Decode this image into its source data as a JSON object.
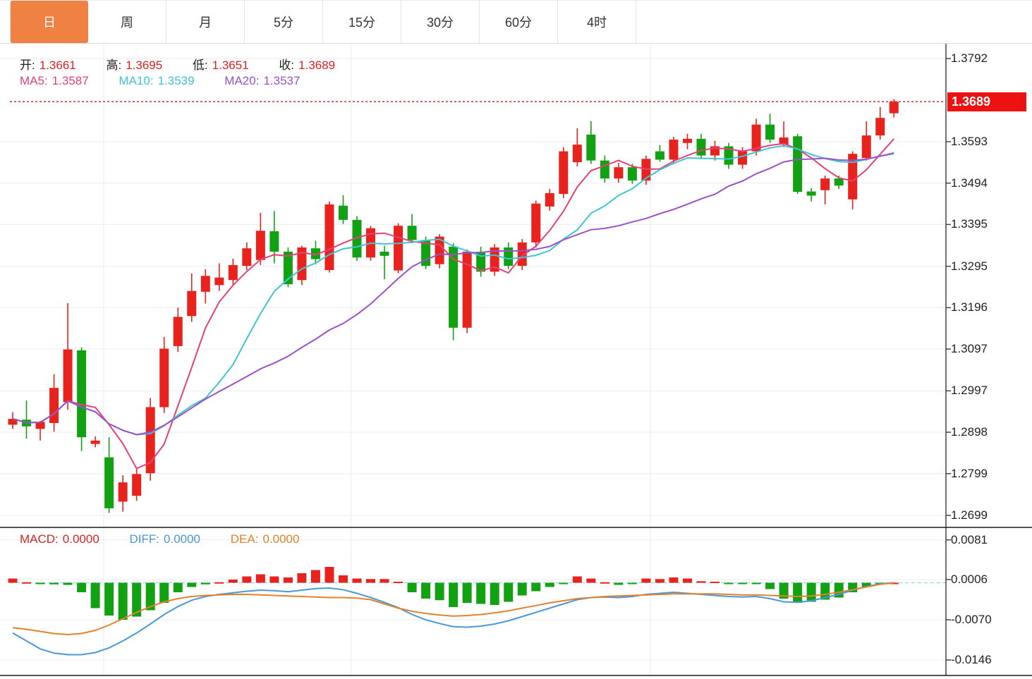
{
  "tab_bar": {
    "items": [
      {
        "name": "day",
        "label": "日",
        "active": true
      },
      {
        "name": "week",
        "label": "周",
        "active": false
      },
      {
        "name": "month",
        "label": "月",
        "active": false
      },
      {
        "name": "5min",
        "label": "5分",
        "active": false
      },
      {
        "name": "15min",
        "label": "15分",
        "active": false
      },
      {
        "name": "30min",
        "label": "30分",
        "active": false
      },
      {
        "name": "60min",
        "label": "60分",
        "active": false
      },
      {
        "name": "4hour",
        "label": "4时",
        "active": false
      }
    ]
  },
  "ohlc_legend": {
    "open_label": "开:",
    "open_value": "1.3661",
    "high_label": "高:",
    "high_value": "1.3695",
    "low_label": "低:",
    "low_value": "1.3651",
    "close_label": "收:",
    "close_value": "1.3689"
  },
  "ma_legend": {
    "ma5_label": "MA5:",
    "ma5_value": "1.3587",
    "ma10_label": "MA10:",
    "ma10_value": "1.3539",
    "ma20_label": "MA20:",
    "ma20_value": "1.3537"
  },
  "macd_legend": {
    "macd_label": "MACD:",
    "macd_value": "0.0000",
    "diff_label": "DIFF:",
    "diff_value": "0.0000",
    "dea_label": "DEA:",
    "dea_value": "0.0000"
  },
  "price_axis": {
    "ticks": [
      "1.3792",
      "1.3593",
      "1.3494",
      "1.3395",
      "1.3295",
      "1.3196",
      "1.3097",
      "1.2997",
      "1.2898",
      "1.2799",
      "1.2699"
    ],
    "current_price_tag": "1.3689"
  },
  "macd_axis": {
    "ticks": [
      "0.0081",
      "0.0006",
      "-0.0070",
      "-0.0146"
    ]
  },
  "colors": {
    "up": "#e8231d",
    "down": "#13a114",
    "ma5": "#e5407a",
    "ma10": "#3fc4d6",
    "ma20": "#9b51c8",
    "diff": "#4a97d9",
    "dea": "#e0832a",
    "tab_active_bg": "#ef8142",
    "current_price_line": "#c03030",
    "tag_bg": "#ee1111",
    "grid": "#ebebf1",
    "divider": "#1a1a1a",
    "axis_line": "#444444",
    "label_black": "#222222",
    "value_red": "#dd2222",
    "zero_dash": "#8fd6e4"
  },
  "chart_data": [
    {
      "type": "candlestick",
      "title": "日K (daily candles, red=up green=down)",
      "y_ticks": [
        1.3792,
        1.3593,
        1.3494,
        1.3395,
        1.3295,
        1.3196,
        1.3097,
        1.2997,
        1.2898,
        1.2799,
        1.2699
      ],
      "y_range": [
        1.2672,
        1.3826
      ],
      "current_price": 1.3689,
      "grid": true,
      "overlays": [
        {
          "name": "MA5",
          "period": 5,
          "last_value": 1.3587
        },
        {
          "name": "MA10",
          "period": 10,
          "last_value": 1.3539
        },
        {
          "name": "MA20",
          "period": 20,
          "last_value": 1.3537
        }
      ],
      "candles_ohlc": [
        [
          1.2916,
          1.2946,
          1.2906,
          1.293
        ],
        [
          1.2928,
          1.2974,
          1.2883,
          1.2912
        ],
        [
          1.2906,
          1.2925,
          1.2878,
          1.2923
        ],
        [
          1.292,
          1.3037,
          1.2899,
          1.3004
        ],
        [
          1.297,
          1.3207,
          1.2952,
          1.3096
        ],
        [
          1.3094,
          1.3101,
          1.2853,
          1.2886
        ],
        [
          1.287,
          1.2888,
          1.2862,
          1.2878
        ],
        [
          1.2838,
          1.2886,
          1.2705,
          1.2716
        ],
        [
          1.2732,
          1.2795,
          1.2708,
          1.2778
        ],
        [
          1.2746,
          1.2812,
          1.2734,
          1.2798
        ],
        [
          1.28,
          1.298,
          1.2782,
          1.2958
        ],
        [
          1.2958,
          1.3126,
          1.2944,
          1.3098
        ],
        [
          1.3104,
          1.3196,
          1.309,
          1.3174
        ],
        [
          1.3176,
          1.3278,
          1.3162,
          1.3236
        ],
        [
          1.3234,
          1.3288,
          1.3206,
          1.3272
        ],
        [
          1.325,
          1.3302,
          1.3236,
          1.3268
        ],
        [
          1.3262,
          1.3313,
          1.325,
          1.3298
        ],
        [
          1.3296,
          1.3352,
          1.3286,
          1.3338
        ],
        [
          1.331,
          1.3423,
          1.3298,
          1.338
        ],
        [
          1.3379,
          1.3427,
          1.3302,
          1.333
        ],
        [
          1.333,
          1.334,
          1.3245,
          1.3252
        ],
        [
          1.3262,
          1.3344,
          1.325,
          1.334
        ],
        [
          1.3338,
          1.3356,
          1.33,
          1.3312
        ],
        [
          1.3286,
          1.345,
          1.328,
          1.3443
        ],
        [
          1.344,
          1.3465,
          1.3396,
          1.3406
        ],
        [
          1.3406,
          1.3415,
          1.3308,
          1.3316
        ],
        [
          1.3316,
          1.3392,
          1.3308,
          1.3386
        ],
        [
          1.333,
          1.3344,
          1.3264,
          1.332
        ],
        [
          1.3285,
          1.3398,
          1.3278,
          1.3392
        ],
        [
          1.3392,
          1.342,
          1.335,
          1.3358
        ],
        [
          1.3358,
          1.3366,
          1.3288,
          1.3296
        ],
        [
          1.33,
          1.3372,
          1.329,
          1.3366
        ],
        [
          1.3342,
          1.335,
          1.3118,
          1.3148
        ],
        [
          1.3148,
          1.3335,
          1.3135,
          1.333
        ],
        [
          1.333,
          1.3342,
          1.327,
          1.3282
        ],
        [
          1.3282,
          1.3348,
          1.3272,
          1.334
        ],
        [
          1.334,
          1.3352,
          1.3288,
          1.3296
        ],
        [
          1.3296,
          1.336,
          1.3286,
          1.3352
        ],
        [
          1.3352,
          1.3452,
          1.334,
          1.3445
        ],
        [
          1.3438,
          1.348,
          1.3428,
          1.347
        ],
        [
          1.3468,
          1.358,
          1.3458,
          1.357
        ],
        [
          1.3544,
          1.3625,
          1.3534,
          1.3586
        ],
        [
          1.361,
          1.3642,
          1.354,
          1.3548
        ],
        [
          1.3548,
          1.356,
          1.3495,
          1.3505
        ],
        [
          1.3505,
          1.3542,
          1.3495,
          1.3532
        ],
        [
          1.3532,
          1.354,
          1.3492,
          1.35
        ],
        [
          1.35,
          1.356,
          1.349,
          1.3552
        ],
        [
          1.357,
          1.3585,
          1.3545,
          1.355
        ],
        [
          1.355,
          1.3605,
          1.3542,
          1.3598
        ],
        [
          1.359,
          1.3612,
          1.3575,
          1.36
        ],
        [
          1.36,
          1.3612,
          1.3552,
          1.356
        ],
        [
          1.356,
          1.3595,
          1.3548,
          1.3582
        ],
        [
          1.3582,
          1.359,
          1.3528,
          1.3538
        ],
        [
          1.3538,
          1.358,
          1.3528,
          1.357
        ],
        [
          1.357,
          1.3648,
          1.356,
          1.3634
        ],
        [
          1.3634,
          1.366,
          1.359,
          1.3598
        ],
        [
          1.3586,
          1.3642,
          1.358,
          1.3603
        ],
        [
          1.3606,
          1.3612,
          1.3468,
          1.3473
        ],
        [
          1.3474,
          1.3482,
          1.345,
          1.3464
        ],
        [
          1.3477,
          1.3512,
          1.3443,
          1.3505
        ],
        [
          1.3505,
          1.3512,
          1.348,
          1.3488
        ],
        [
          1.3455,
          1.357,
          1.3431,
          1.3564
        ],
        [
          1.3554,
          1.3642,
          1.3548,
          1.3608
        ],
        [
          1.3608,
          1.3676,
          1.3598,
          1.365
        ],
        [
          1.3661,
          1.3695,
          1.3651,
          1.3689
        ]
      ]
    },
    {
      "type": "bar",
      "title": "MACD(12,26,9)",
      "y_ticks": [
        0.0081,
        0.0006,
        -0.007,
        -0.0146
      ],
      "grid": true,
      "histogram": [
        0.0008,
        0.0001,
        -0.0001,
        -0.0003,
        -0.0004,
        -0.0018,
        -0.0048,
        -0.0062,
        -0.007,
        -0.0064,
        -0.0052,
        -0.0038,
        -0.0018,
        -0.0008,
        -0.0003,
        0.0001,
        0.0006,
        0.0012,
        0.0016,
        0.0012,
        0.001,
        0.0018,
        0.0024,
        0.003,
        0.0014,
        0.0008,
        0.0007,
        0.0007,
        0.0002,
        -0.0018,
        -0.003,
        -0.0033,
        -0.0046,
        -0.0038,
        -0.004,
        -0.0042,
        -0.0036,
        -0.0024,
        -0.0016,
        -0.0008,
        -0.0001,
        0.0012,
        0.0008,
        0.0001,
        -0.0004,
        -0.0001,
        0.0008,
        0.0007,
        0.001,
        0.0008,
        0.0003,
        0.0002,
        -0.0002,
        -0.0001,
        -0.0002,
        -0.0012,
        -0.003,
        -0.0038,
        -0.0036,
        -0.0032,
        -0.0028,
        -0.0018,
        -0.0008,
        -0.0001,
        0.0
      ],
      "series": [
        {
          "name": "DIFF",
          "values": [
            -0.0095,
            -0.011,
            -0.0125,
            -0.0133,
            -0.0136,
            -0.0136,
            -0.0132,
            -0.0123,
            -0.011,
            -0.0095,
            -0.0078,
            -0.006,
            -0.0045,
            -0.0033,
            -0.0026,
            -0.0022,
            -0.0019,
            -0.0016,
            -0.0014,
            -0.0015,
            -0.0017,
            -0.0014,
            -0.0011,
            -0.001,
            -0.0013,
            -0.002,
            -0.0028,
            -0.0037,
            -0.0047,
            -0.006,
            -0.007,
            -0.0077,
            -0.0083,
            -0.0084,
            -0.0082,
            -0.0078,
            -0.0072,
            -0.0064,
            -0.0056,
            -0.0048,
            -0.004,
            -0.0032,
            -0.0028,
            -0.0027,
            -0.0028,
            -0.0026,
            -0.0022,
            -0.002,
            -0.0018,
            -0.002,
            -0.0022,
            -0.0024,
            -0.0026,
            -0.0027,
            -0.0026,
            -0.003,
            -0.0036,
            -0.0037,
            -0.0034,
            -0.0028,
            -0.0022,
            -0.0014,
            -0.0007,
            -0.0002,
            0.0
          ]
        },
        {
          "name": "DEA",
          "values": [
            -0.0085,
            -0.0088,
            -0.0092,
            -0.0096,
            -0.0098,
            -0.0096,
            -0.009,
            -0.008,
            -0.0068,
            -0.0056,
            -0.0045,
            -0.0036,
            -0.003,
            -0.0026,
            -0.0024,
            -0.0023,
            -0.0022,
            -0.0022,
            -0.0023,
            -0.0024,
            -0.0025,
            -0.0026,
            -0.0027,
            -0.0028,
            -0.0028,
            -0.0029,
            -0.0032,
            -0.004,
            -0.0048,
            -0.0054,
            -0.0058,
            -0.0061,
            -0.0063,
            -0.0062,
            -0.006,
            -0.0057,
            -0.0053,
            -0.0048,
            -0.0043,
            -0.0038,
            -0.0034,
            -0.003,
            -0.0028,
            -0.0026,
            -0.0025,
            -0.0024,
            -0.0023,
            -0.0022,
            -0.0021,
            -0.0021,
            -0.0021,
            -0.0021,
            -0.0022,
            -0.0023,
            -0.0023,
            -0.0024,
            -0.0025,
            -0.0026,
            -0.0025,
            -0.0022,
            -0.0018,
            -0.0013,
            -0.0008,
            -0.0003,
            0.0
          ]
        }
      ]
    }
  ]
}
